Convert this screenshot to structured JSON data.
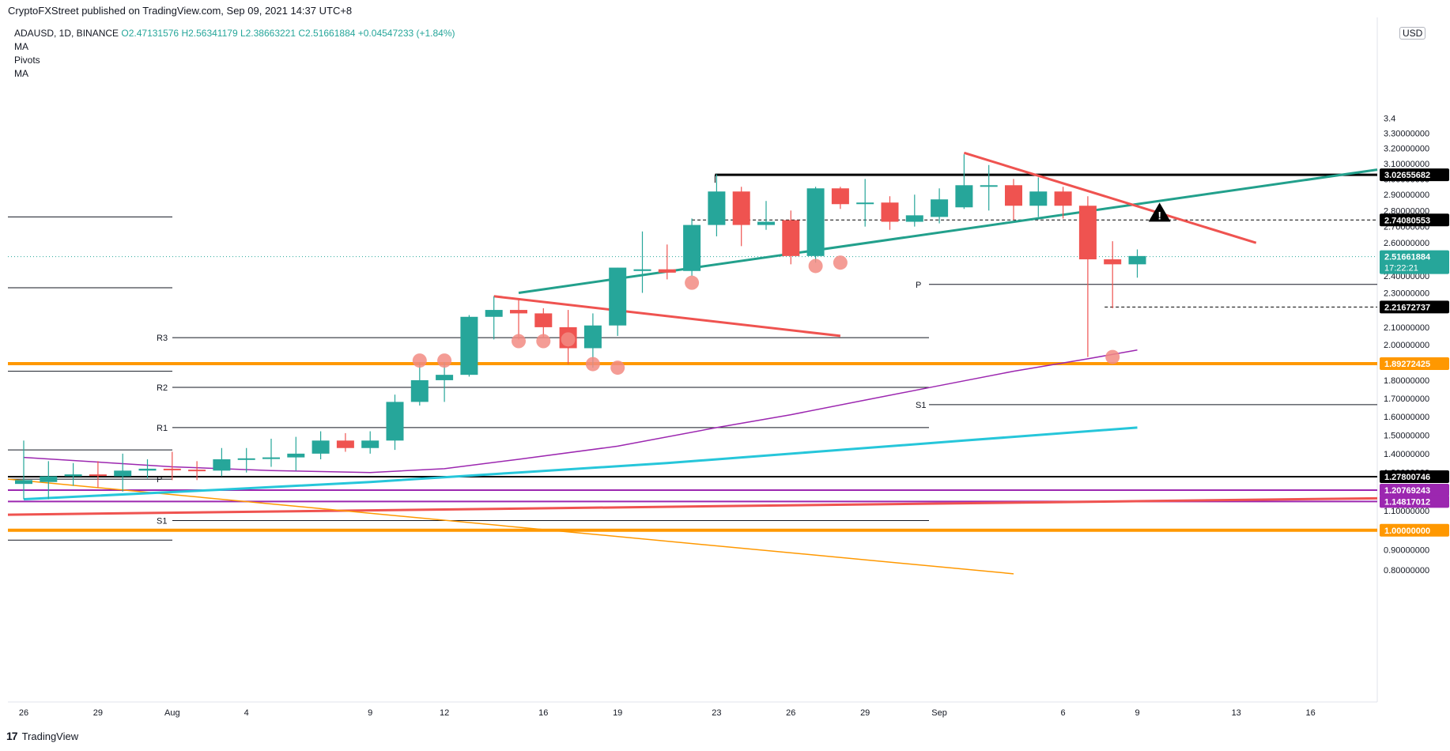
{
  "publisher": "CryptoFXStreet published on TradingView.com, Sep 09, 2021 14:37 UTC+8",
  "legend": {
    "symbol": "ADAUSD, 1D, BINANCE",
    "ohlc": "O2.47131576  H2.56341179  L2.38663221  C2.51661884  +0.04547233 (+1.84%)",
    "indicators": [
      "MA",
      "Pivots",
      "MA"
    ]
  },
  "currency": "USD",
  "branding": "TradingView",
  "chart_data": {
    "type": "candlestick",
    "symbol": "ADAUSD",
    "timeframe": "1D",
    "exchange": "BINANCE",
    "ylim": [
      0.78,
      3.45
    ],
    "y_ticks": [
      "3.4",
      "3.30000000",
      "3.20000000",
      "3.10000000",
      "3.00000000",
      "2.90000000",
      "2.80000000",
      "2.70000000",
      "2.60000000",
      "2.50000000",
      "2.40000000",
      "2.30000000",
      "2.20000000",
      "2.10000000",
      "2.00000000",
      "1.90000000",
      "1.80000000",
      "1.70000000",
      "1.60000000",
      "1.50000000",
      "1.40000000",
      "1.30000000",
      "1.20000000",
      "1.10000000",
      "1.00000000",
      "0.90000000",
      "0.80000000"
    ],
    "x_ticks": [
      {
        "label": "26",
        "day": 0
      },
      {
        "label": "29",
        "day": 3
      },
      {
        "label": "Aug",
        "day": 6
      },
      {
        "label": "4",
        "day": 9
      },
      {
        "label": "9",
        "day": 14
      },
      {
        "label": "12",
        "day": 17
      },
      {
        "label": "16",
        "day": 21
      },
      {
        "label": "19",
        "day": 24
      },
      {
        "label": "23",
        "day": 28
      },
      {
        "label": "26",
        "day": 31
      },
      {
        "label": "29",
        "day": 34
      },
      {
        "label": "Sep",
        "day": 37
      },
      {
        "label": "6",
        "day": 42
      },
      {
        "label": "9",
        "day": 45
      },
      {
        "label": "13",
        "day": 49
      },
      {
        "label": "16",
        "day": 52
      }
    ],
    "candles": [
      {
        "o": 1.24,
        "h": 1.47,
        "l": 1.16,
        "c": 1.26
      },
      {
        "o": 1.25,
        "h": 1.36,
        "l": 1.16,
        "c": 1.28
      },
      {
        "o": 1.28,
        "h": 1.35,
        "l": 1.23,
        "c": 1.29
      },
      {
        "o": 1.29,
        "h": 1.36,
        "l": 1.22,
        "c": 1.285
      },
      {
        "o": 1.28,
        "h": 1.4,
        "l": 1.2,
        "c": 1.31
      },
      {
        "o": 1.31,
        "h": 1.37,
        "l": 1.27,
        "c": 1.32
      },
      {
        "o": 1.32,
        "h": 1.41,
        "l": 1.26,
        "c": 1.315
      },
      {
        "o": 1.315,
        "h": 1.36,
        "l": 1.26,
        "c": 1.31
      },
      {
        "o": 1.31,
        "h": 1.43,
        "l": 1.28,
        "c": 1.37
      },
      {
        "o": 1.37,
        "h": 1.43,
        "l": 1.3,
        "c": 1.375
      },
      {
        "o": 1.375,
        "h": 1.48,
        "l": 1.33,
        "c": 1.38
      },
      {
        "o": 1.38,
        "h": 1.49,
        "l": 1.31,
        "c": 1.4
      },
      {
        "o": 1.4,
        "h": 1.52,
        "l": 1.37,
        "c": 1.47
      },
      {
        "o": 1.47,
        "h": 1.51,
        "l": 1.41,
        "c": 1.43
      },
      {
        "o": 1.43,
        "h": 1.52,
        "l": 1.4,
        "c": 1.47
      },
      {
        "o": 1.47,
        "h": 1.72,
        "l": 1.42,
        "c": 1.68
      },
      {
        "o": 1.68,
        "h": 1.9,
        "l": 1.66,
        "c": 1.8
      },
      {
        "o": 1.8,
        "h": 1.9,
        "l": 1.68,
        "c": 1.83
      },
      {
        "o": 1.83,
        "h": 2.17,
        "l": 1.82,
        "c": 2.16
      },
      {
        "o": 2.16,
        "h": 2.28,
        "l": 2.03,
        "c": 2.2
      },
      {
        "o": 2.2,
        "h": 2.26,
        "l": 2.03,
        "c": 2.18
      },
      {
        "o": 2.18,
        "h": 2.21,
        "l": 2.04,
        "c": 2.1
      },
      {
        "o": 2.1,
        "h": 2.2,
        "l": 1.89,
        "c": 1.98
      },
      {
        "o": 1.98,
        "h": 2.18,
        "l": 1.87,
        "c": 2.11
      },
      {
        "o": 2.11,
        "h": 2.45,
        "l": 2.05,
        "c": 2.45
      },
      {
        "o": 2.43,
        "h": 2.67,
        "l": 2.3,
        "c": 2.44
      },
      {
        "o": 2.44,
        "h": 2.59,
        "l": 2.38,
        "c": 2.42
      },
      {
        "o": 2.43,
        "h": 2.75,
        "l": 2.4,
        "c": 2.71
      },
      {
        "o": 2.71,
        "h": 3.03,
        "l": 2.64,
        "c": 2.92
      },
      {
        "o": 2.92,
        "h": 2.95,
        "l": 2.58,
        "c": 2.71
      },
      {
        "o": 2.71,
        "h": 2.86,
        "l": 2.68,
        "c": 2.73
      },
      {
        "o": 2.74,
        "h": 2.8,
        "l": 2.47,
        "c": 2.52
      },
      {
        "o": 2.52,
        "h": 2.95,
        "l": 2.48,
        "c": 2.94
      },
      {
        "o": 2.94,
        "h": 2.95,
        "l": 2.81,
        "c": 2.84
      },
      {
        "o": 2.84,
        "h": 3.0,
        "l": 2.7,
        "c": 2.85
      },
      {
        "o": 2.85,
        "h": 2.89,
        "l": 2.68,
        "c": 2.73
      },
      {
        "o": 2.73,
        "h": 2.9,
        "l": 2.7,
        "c": 2.77
      },
      {
        "o": 2.76,
        "h": 2.94,
        "l": 2.72,
        "c": 2.87
      },
      {
        "o": 2.82,
        "h": 3.16,
        "l": 2.81,
        "c": 2.96
      },
      {
        "o": 2.96,
        "h": 3.09,
        "l": 2.8,
        "c": 2.96
      },
      {
        "o": 2.96,
        "h": 3.0,
        "l": 2.74,
        "c": 2.83
      },
      {
        "o": 2.83,
        "h": 3.01,
        "l": 2.76,
        "c": 2.92
      },
      {
        "o": 2.92,
        "h": 2.95,
        "l": 2.75,
        "c": 2.83
      },
      {
        "o": 2.83,
        "h": 2.89,
        "l": 1.93,
        "c": 2.5
      },
      {
        "o": 2.5,
        "h": 2.61,
        "l": 2.21,
        "c": 2.47
      },
      {
        "o": 2.47,
        "h": 2.56,
        "l": 2.39,
        "c": 2.52
      }
    ],
    "pivots_july": {
      "levels": [
        {
          "name": "",
          "value": 2.76
        },
        {
          "name": "",
          "value": 2.33
        },
        {
          "name": "",
          "value": 1.85
        },
        {
          "name": "",
          "value": 1.42
        },
        {
          "name": "P",
          "value": 1.265
        },
        {
          "name": "",
          "value": 0.95
        }
      ]
    },
    "pivots_august": {
      "levels": [
        {
          "name": "R3",
          "value": 2.04
        },
        {
          "name": "R2",
          "value": 1.76
        },
        {
          "name": "R1",
          "value": 1.54
        },
        {
          "name": "S1",
          "value": 1.05
        }
      ]
    },
    "pivots_september": {
      "levels": [
        {
          "name": "P",
          "value": 2.35
        },
        {
          "name": "S1",
          "value": 1.665
        }
      ]
    },
    "price_labels": [
      {
        "text": "3.02655682",
        "value": 3.02655682,
        "bg": "#000000"
      },
      {
        "text": "2.74080553",
        "value": 2.74080553,
        "bg": "#000000"
      },
      {
        "text": "2.51661884",
        "value": 2.51661884,
        "bg": "#26a69a",
        "sub": "17:22:21"
      },
      {
        "text": "2.21672737",
        "value": 2.21672737,
        "bg": "#000000"
      },
      {
        "text": "1.89272425",
        "value": 1.89272425,
        "bg": "#ff9800"
      },
      {
        "text": "1.27800746",
        "value": 1.27800746,
        "bg": "#000000"
      },
      {
        "text": "1.20769243",
        "value": 1.20769243,
        "bg": "#9c27b0"
      },
      {
        "text": "1.14817012",
        "value": 1.14817012,
        "bg": "#9c27b0"
      },
      {
        "text": "1.00000000",
        "value": 1.0,
        "bg": "#ff9800"
      }
    ],
    "ma_purple": [
      {
        "day": 0,
        "v": 1.38
      },
      {
        "day": 6,
        "v": 1.33
      },
      {
        "day": 10,
        "v": 1.31
      },
      {
        "day": 14,
        "v": 1.3
      },
      {
        "day": 17,
        "v": 1.32
      },
      {
        "day": 20,
        "v": 1.37
      },
      {
        "day": 24,
        "v": 1.44
      },
      {
        "day": 28,
        "v": 1.54
      },
      {
        "day": 31,
        "v": 1.61
      },
      {
        "day": 34,
        "v": 1.69
      },
      {
        "day": 37,
        "v": 1.77
      },
      {
        "day": 40,
        "v": 1.85
      },
      {
        "day": 43,
        "v": 1.92
      },
      {
        "day": 45,
        "v": 1.97
      }
    ],
    "ma_cyan": [
      {
        "day": 0,
        "v": 1.16
      },
      {
        "day": 8,
        "v": 1.21
      },
      {
        "day": 14,
        "v": 1.25
      },
      {
        "day": 20,
        "v": 1.3
      },
      {
        "day": 26,
        "v": 1.35
      },
      {
        "day": 32,
        "v": 1.41
      },
      {
        "day": 38,
        "v": 1.47
      },
      {
        "day": 45,
        "v": 1.54
      }
    ],
    "colors": {
      "up": "#26a69a",
      "down": "#ef5350",
      "ma_purple": "#9c27b0",
      "ma_cyan": "#26c6da",
      "orange": "#ff9800",
      "trend_red": "#ef5350",
      "trend_green": "#22a08c",
      "marker": "#f28b82"
    }
  }
}
